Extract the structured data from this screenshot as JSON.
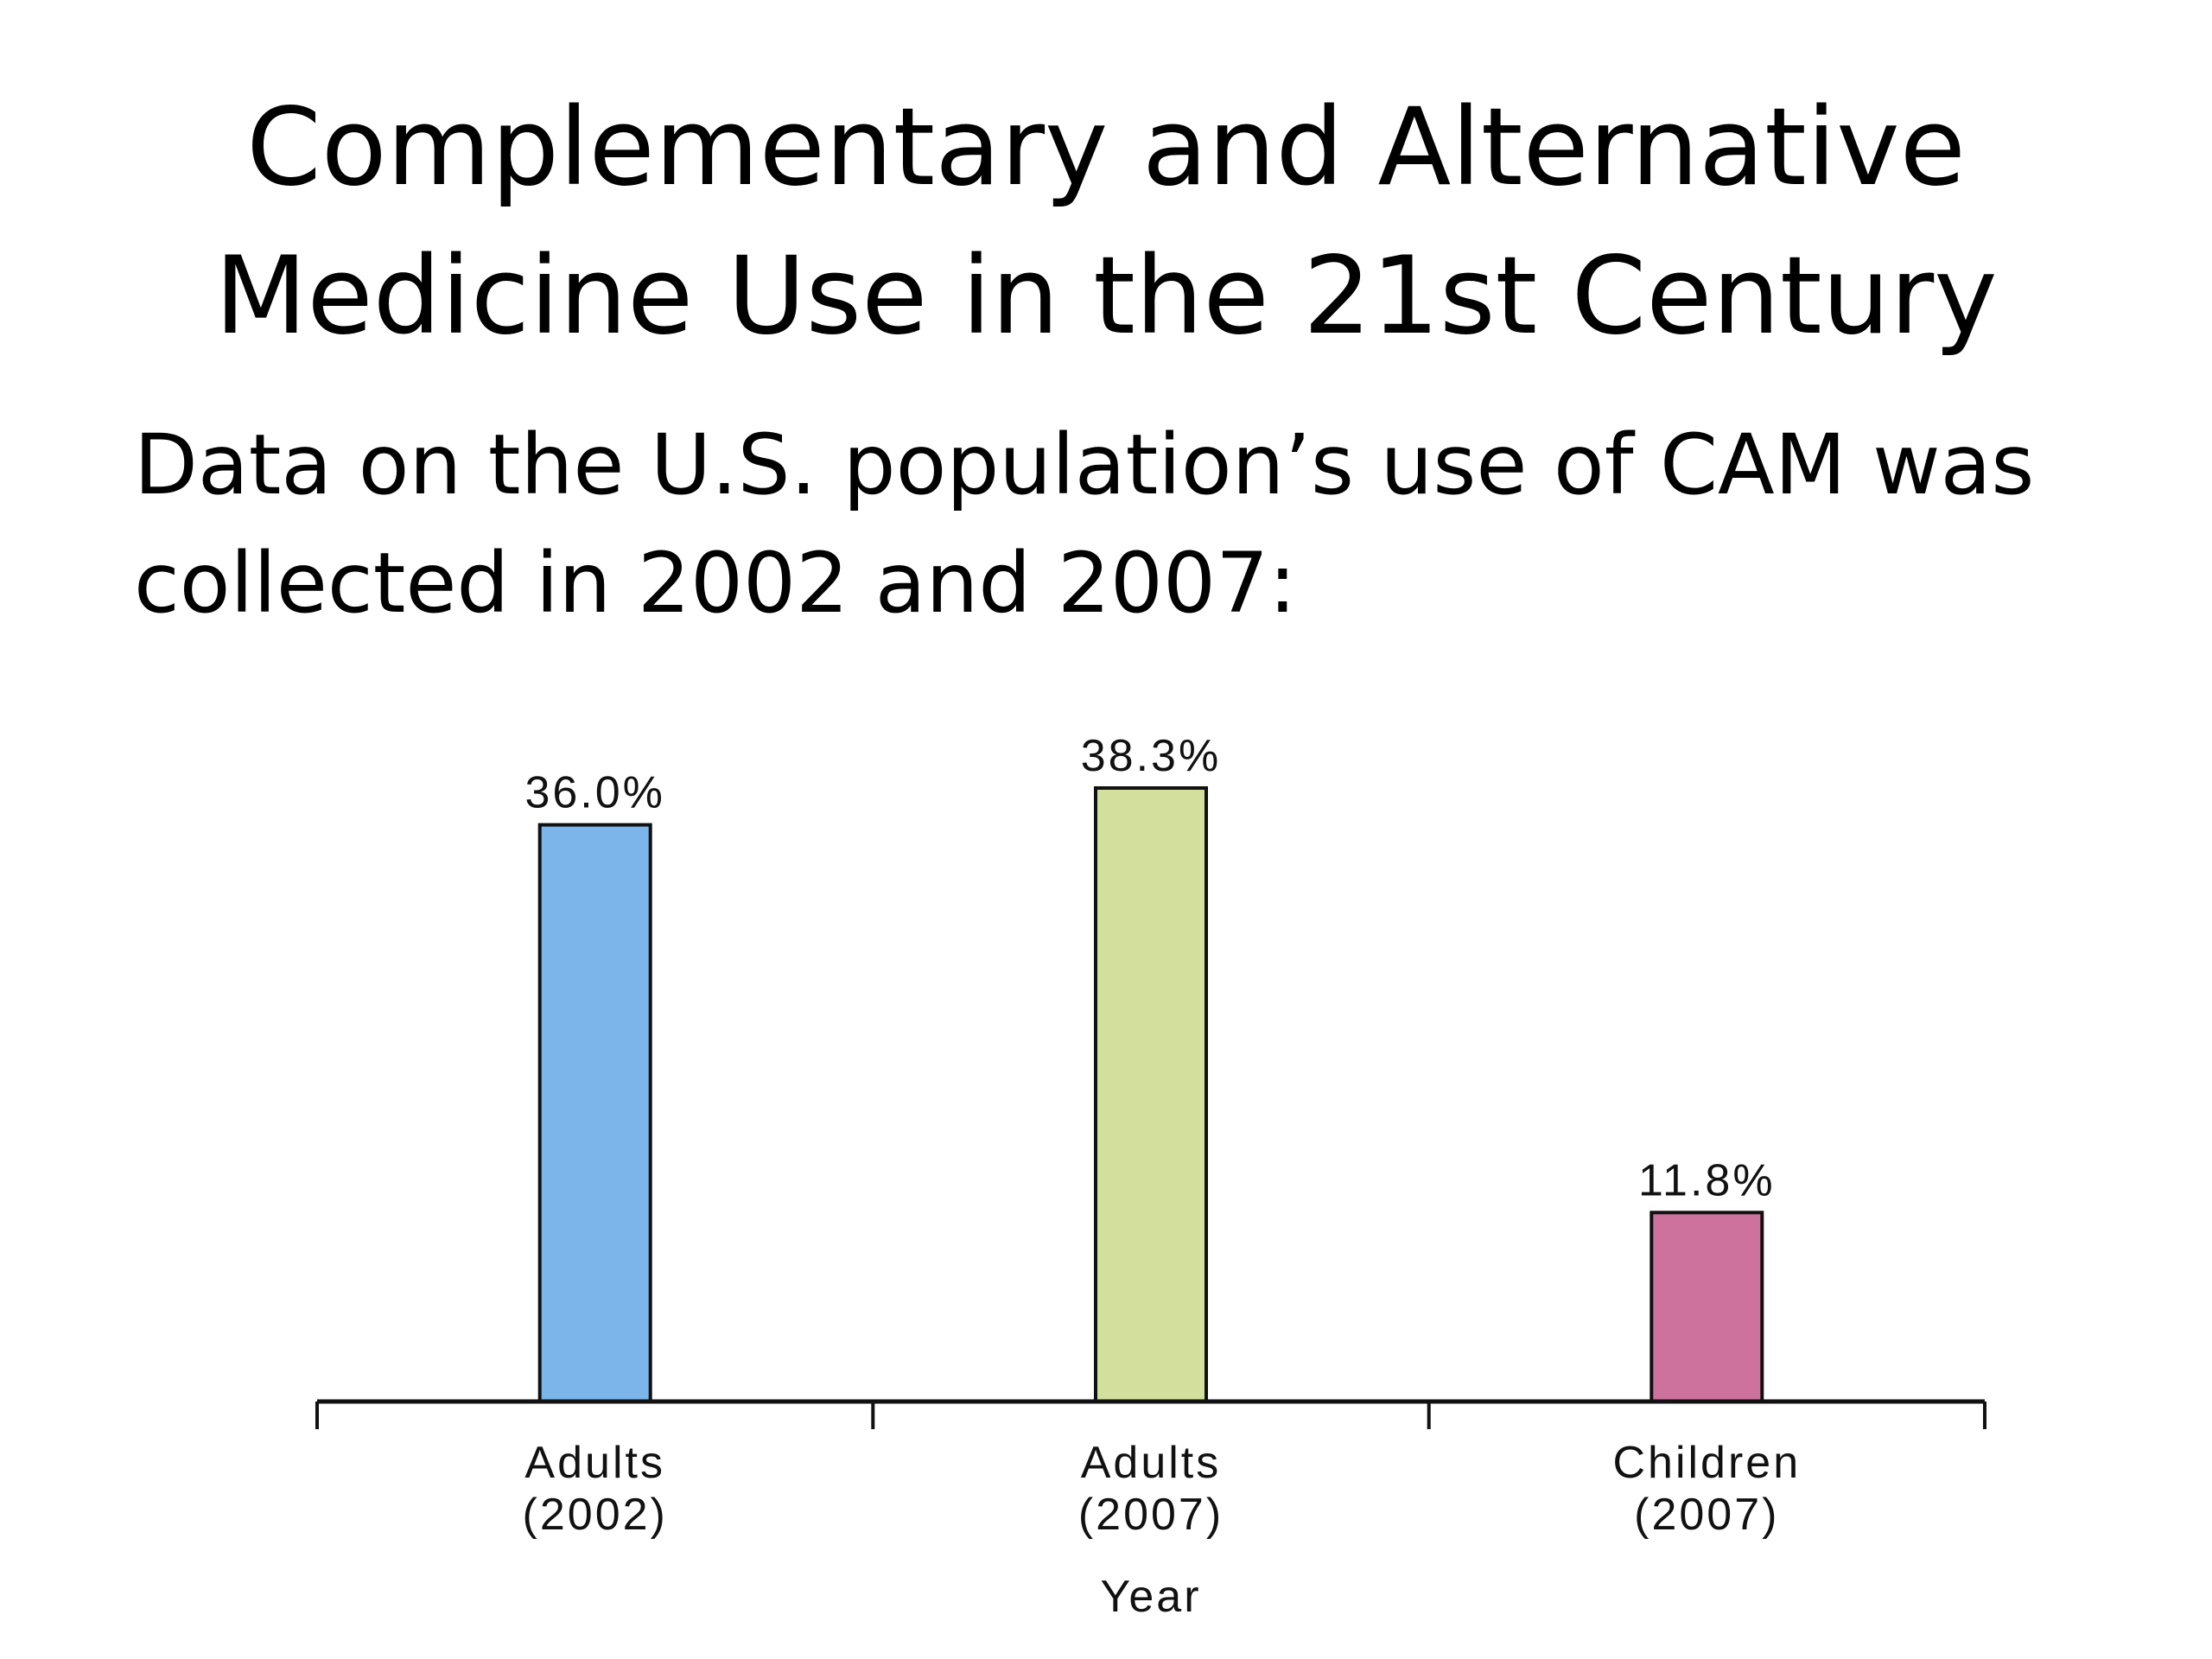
{
  "title": {
    "line1": "Complementary and Alternative",
    "line2": "Medicine Use in the 21st Century"
  },
  "subtitle": {
    "line1": "Data on the U.S. population’s use of CAM was",
    "line2": "collected in 2002 and 2007:"
  },
  "chart_data": {
    "type": "bar",
    "categories": [
      [
        "Adults",
        "(2002)"
      ],
      [
        "Adults",
        "(2007)"
      ],
      [
        "Children",
        "(2007)"
      ]
    ],
    "values": [
      36.0,
      38.3,
      11.8
    ],
    "data_labels": [
      "36.0%",
      "38.3%",
      "11.8%"
    ],
    "bar_colors": [
      "#7bb5ea",
      "#d3e09d",
      "#cc729d"
    ],
    "xlabel": "Year",
    "ylabel": "",
    "ylim": [
      0,
      40
    ],
    "grid": false,
    "legend": "none"
  }
}
